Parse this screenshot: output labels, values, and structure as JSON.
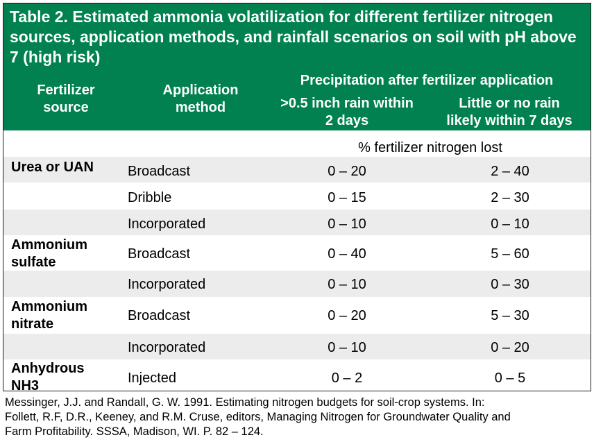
{
  "title": "Table 2. Estimated ammonia volatilization for different fertilizer nitrogen sources, application methods, and rainfall scenarios on soil with pH above 7 (high risk)",
  "headers": {
    "fertilizer_source": "Fertilizer\nsource",
    "application_method": "Application\nmethod",
    "precipitation": "Precipitation after fertilizer application",
    "rain_within_2_days": ">0.5 inch rain within\n2 days",
    "little_or_no_rain": "Little or no rain\nlikely within 7 days"
  },
  "unit_label": "% fertilizer nitrogen lost",
  "rows": [
    {
      "source": "Urea or UAN",
      "method": "Broadcast",
      "rain": "0 – 20",
      "no_rain": "2 – 40"
    },
    {
      "source": "",
      "method": "Dribble",
      "rain": "0 – 15",
      "no_rain": "2 – 30"
    },
    {
      "source": "",
      "method": "Incorporated",
      "rain": "0 – 10",
      "no_rain": "0 – 10"
    },
    {
      "source": "Ammonium\nsulfate",
      "method": "Broadcast",
      "rain": "0 – 40",
      "no_rain": "5 – 60"
    },
    {
      "source": "",
      "method": "Incorporated",
      "rain": "0 – 10",
      "no_rain": "0 – 30"
    },
    {
      "source": "Ammonium\nnitrate",
      "method": "Broadcast",
      "rain": "0 – 20",
      "no_rain": "5 – 30"
    },
    {
      "source": "",
      "method": "Incorporated",
      "rain": "0 – 10",
      "no_rain": "0 – 20"
    },
    {
      "source": "Anhydrous\nNH3",
      "method": "Injected",
      "rain": "0 – 2",
      "no_rain": "0 – 5"
    }
  ],
  "citation": "Messinger, J.J. and Randall, G. W. 1991. Estimating nitrogen budgets for soil-crop systems. In:\nFollett, R.F, D.R., Keeney, and R.M. Cruse, editors, Managing Nitrogen for Groundwater Quality and\nFarm Profitability. SSSA, Madison, WI. P. 82 – 124.",
  "colors": {
    "header_bg": "#00814f",
    "header_text": "#ffffff",
    "band_gray": "#ececec"
  }
}
